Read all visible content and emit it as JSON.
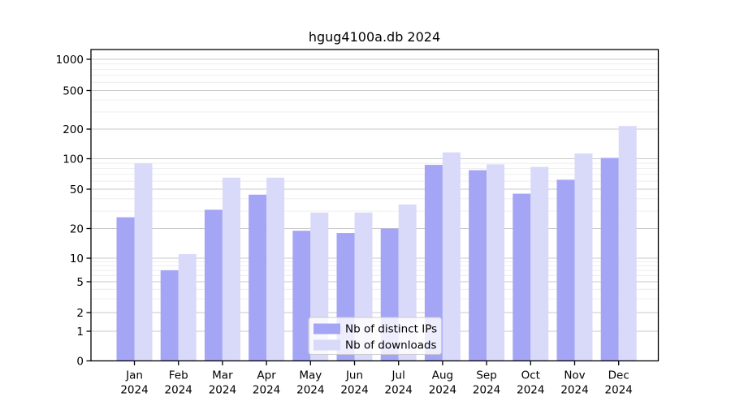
{
  "page": {
    "background": "#ffffff"
  },
  "chart_data": {
    "type": "bar",
    "title": "hgug4100a.db 2024",
    "x": {
      "months": [
        "Jan",
        "Feb",
        "Mar",
        "Apr",
        "May",
        "Jun",
        "Jul",
        "Aug",
        "Sep",
        "Oct",
        "Nov",
        "Dec"
      ],
      "year": "2024"
    },
    "series": [
      {
        "name": "Nb of distinct IPs",
        "color": "#a5a5f6",
        "values": [
          26,
          7,
          31,
          44,
          19,
          18,
          20,
          87,
          77,
          45,
          62,
          102
        ]
      },
      {
        "name": "Nb of downloads",
        "color": "#d9d9fa",
        "values": [
          90,
          11,
          65,
          65,
          29,
          29,
          35,
          116,
          88,
          83,
          113,
          215
        ]
      }
    ],
    "y_ticks": [
      0,
      1,
      2,
      5,
      10,
      20,
      50,
      100,
      200,
      500,
      1000
    ],
    "y_scale": "symlog",
    "ylim": [
      0,
      1280
    ],
    "grid": true,
    "legend_position": "inside-bottom-center",
    "colors": {
      "grid_major": "#c9c9c9",
      "grid_minor": "#ececec",
      "axis": "#000000",
      "legend_border": "#cccccc",
      "legend_bg": "#ffffff"
    }
  }
}
